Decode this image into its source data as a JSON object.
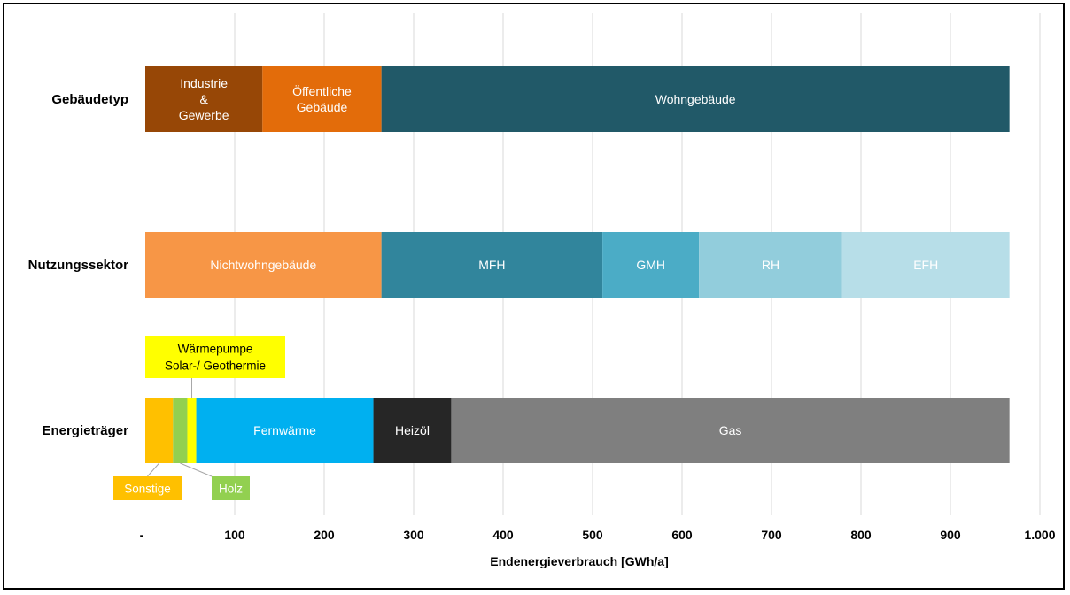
{
  "chart_data": {
    "type": "bar",
    "orientation": "horizontal",
    "stacked": true,
    "xlabel": "Endenergieverbrauch [GWh/a]",
    "xlim": [
      0,
      1000
    ],
    "xticks": [
      "-",
      "100",
      "200",
      "300",
      "400",
      "500",
      "600",
      "700",
      "800",
      "900",
      "1.000"
    ],
    "grid": "vertical",
    "categories": [
      {
        "label": "Gebäudetyp",
        "segments": [
          {
            "name": "Industrie & Gewerbe",
            "lines": [
              "Industrie",
              "&",
              "Gewerbe"
            ],
            "value": 131,
            "color": "#974706",
            "text_color": "#ffffff"
          },
          {
            "name": "Öffentliche Gebäude",
            "lines": [
              "Öffentliche",
              "Gebäude"
            ],
            "value": 133,
            "color": "#e36c0a",
            "text_color": "#ffffff"
          },
          {
            "name": "Wohngebäude",
            "lines": [
              "Wohngebäude"
            ],
            "value": 702,
            "color": "#215968",
            "text_color": "#ffffff"
          }
        ]
      },
      {
        "label": "Nutzungssektor",
        "segments": [
          {
            "name": "Nichtwohngebäude",
            "lines": [
              "Nichtwohngebäude"
            ],
            "value": 264,
            "color": "#f79646",
            "text_color": "#ffffff"
          },
          {
            "name": "MFH",
            "lines": [
              "MFH"
            ],
            "value": 247,
            "color": "#31859c",
            "text_color": "#ffffff"
          },
          {
            "name": "GMH",
            "lines": [
              "GMH"
            ],
            "value": 108,
            "color": "#4bacc6",
            "text_color": "#ffffff"
          },
          {
            "name": "RH",
            "lines": [
              "RH"
            ],
            "value": 160,
            "color": "#92cddc",
            "text_color": "#ffffff"
          },
          {
            "name": "EFH",
            "lines": [
              "EFH"
            ],
            "value": 187,
            "color": "#b7dee8",
            "text_color": "#ffffff"
          }
        ]
      },
      {
        "label": "Energieträger",
        "segments": [
          {
            "name": "Sonstige",
            "lines": [
              ""
            ],
            "value": 31,
            "color": "#ffc000",
            "text_color": "#ffffff"
          },
          {
            "name": "Holz",
            "lines": [
              ""
            ],
            "value": 16,
            "color": "#92d050",
            "text_color": "#ffffff"
          },
          {
            "name": "Wärmepumpe Solar-/ Geothermie",
            "lines": [
              ""
            ],
            "value": 10,
            "color": "#ffff00",
            "text_color": "#000000"
          },
          {
            "name": "Fernwärme",
            "lines": [
              "Fernwärme"
            ],
            "value": 198,
            "color": "#00b0f0",
            "text_color": "#ffffff"
          },
          {
            "name": "Heizöl",
            "lines": [
              "Heizöl"
            ],
            "value": 87,
            "color": "#262626",
            "text_color": "#ffffff"
          },
          {
            "name": "Gas",
            "lines": [
              "Gas"
            ],
            "value": 624,
            "color": "#7f7f7f",
            "text_color": "#ffffff"
          }
        ]
      }
    ],
    "callouts": [
      {
        "name": "callout-waermepumpe",
        "lines": [
          "Wärmepumpe",
          "Solar-/ Geothermie"
        ],
        "bg": "#ffff00",
        "text_color": "#000000",
        "category": 2,
        "segment": 2
      },
      {
        "name": "callout-sonstige",
        "lines": [
          "Sonstige"
        ],
        "bg": "#ffc000",
        "text_color": "#ffffff",
        "category": 2,
        "segment": 0
      },
      {
        "name": "callout-holz",
        "lines": [
          "Holz"
        ],
        "bg": "#92d050",
        "text_color": "#ffffff",
        "category": 2,
        "segment": 1
      }
    ]
  }
}
